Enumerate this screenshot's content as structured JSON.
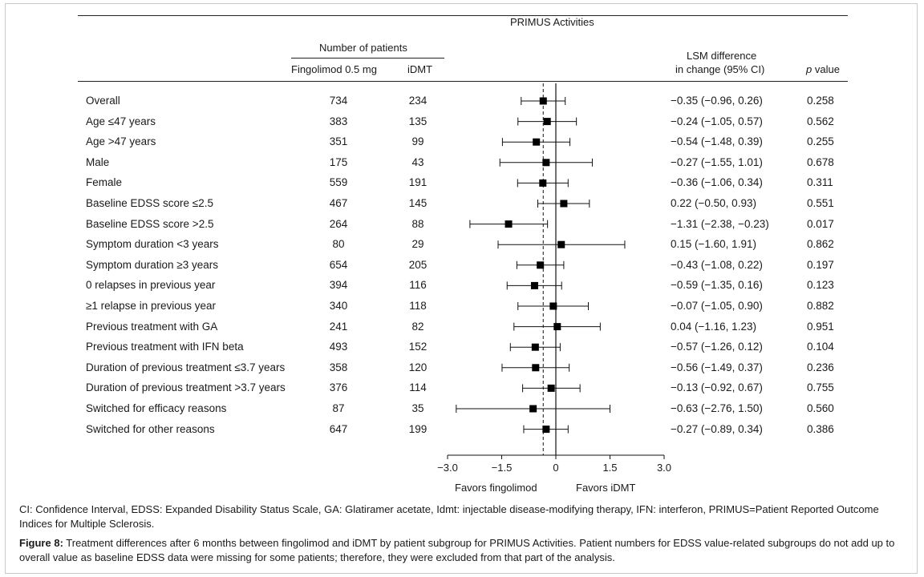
{
  "header": {
    "section_title": "PRIMUS Activities",
    "patients_header": "Number of patients",
    "col_fingolimod": "Fingolimod 0.5 mg",
    "col_idmt": "iDMT",
    "col_lsm_line1": "LSM difference",
    "col_lsm_line2": "in change (95% CI)",
    "col_p_italic": "p",
    "col_p_rest": " value"
  },
  "axis": {
    "ticks": [
      -3.0,
      -1.5,
      0,
      1.5,
      3.0
    ],
    "tick_labels": [
      "−3.0",
      "−1.5",
      "0",
      "1.5",
      "3.0"
    ],
    "xlim": [
      -3.0,
      3.0
    ],
    "favors_left": "Favors fingolimod",
    "favors_right": "Favors iDMT",
    "overall_reference": -0.35
  },
  "chart_data": {
    "type": "forest",
    "xlim": [
      -3.0,
      3.0
    ],
    "rows": [
      {
        "label": "Overall",
        "fingolimod": "734",
        "idmt": "234",
        "est": -0.35,
        "lo": -0.96,
        "hi": 0.26,
        "ci_text": "−0.35 (−0.96, 0.26)",
        "p": "0.258"
      },
      {
        "label": "Age ≤47 years",
        "fingolimod": "383",
        "idmt": "135",
        "est": -0.24,
        "lo": -1.05,
        "hi": 0.57,
        "ci_text": "−0.24 (−1.05, 0.57)",
        "p": "0.562"
      },
      {
        "label": "Age >47 years",
        "fingolimod": "351",
        "idmt": "99",
        "est": -0.54,
        "lo": -1.48,
        "hi": 0.39,
        "ci_text": "−0.54 (−1.48, 0.39)",
        "p": "0.255"
      },
      {
        "label": "Male",
        "fingolimod": "175",
        "idmt": "43",
        "est": -0.27,
        "lo": -1.55,
        "hi": 1.01,
        "ci_text": "−0.27 (−1.55, 1.01)",
        "p": "0.678"
      },
      {
        "label": "Female",
        "fingolimod": "559",
        "idmt": "191",
        "est": -0.36,
        "lo": -1.06,
        "hi": 0.34,
        "ci_text": "−0.36 (−1.06, 0.34)",
        "p": "0.311"
      },
      {
        "label": "Baseline EDSS score ≤2.5",
        "fingolimod": "467",
        "idmt": "145",
        "est": 0.22,
        "lo": -0.5,
        "hi": 0.93,
        "ci_text": "0.22 (−0.50, 0.93)",
        "p": "0.551"
      },
      {
        "label": "Baseline EDSS score >2.5",
        "fingolimod": "264",
        "idmt": "88",
        "est": -1.31,
        "lo": -2.38,
        "hi": -0.23,
        "ci_text": "−1.31 (−2.38, −0.23)",
        "p": "0.017"
      },
      {
        "label": "Symptom duration <3 years",
        "fingolimod": "80",
        "idmt": "29",
        "est": 0.15,
        "lo": -1.6,
        "hi": 1.91,
        "ci_text": "0.15 (−1.60, 1.91)",
        "p": "0.862"
      },
      {
        "label": "Symptom duration ≥3 years",
        "fingolimod": "654",
        "idmt": "205",
        "est": -0.43,
        "lo": -1.08,
        "hi": 0.22,
        "ci_text": "−0.43 (−1.08, 0.22)",
        "p": "0.197"
      },
      {
        "label": "0 relapses in previous year",
        "fingolimod": "394",
        "idmt": "116",
        "est": -0.59,
        "lo": -1.35,
        "hi": 0.16,
        "ci_text": "−0.59 (−1.35, 0.16)",
        "p": "0.123"
      },
      {
        "label": "≥1 relapse in previous year",
        "fingolimod": "340",
        "idmt": "118",
        "est": -0.07,
        "lo": -1.05,
        "hi": 0.9,
        "ci_text": "−0.07 (−1.05, 0.90)",
        "p": "0.882"
      },
      {
        "label": "Previous treatment with GA",
        "fingolimod": "241",
        "idmt": "82",
        "est": 0.04,
        "lo": -1.16,
        "hi": 1.23,
        "ci_text": "0.04 (−1.16, 1.23)",
        "p": "0.951"
      },
      {
        "label": "Previous treatment with IFN beta",
        "fingolimod": "493",
        "idmt": "152",
        "est": -0.57,
        "lo": -1.26,
        "hi": 0.12,
        "ci_text": "−0.57 (−1.26, 0.12)",
        "p": "0.104"
      },
      {
        "label": "Duration of previous treatment ≤3.7 years",
        "fingolimod": "358",
        "idmt": "120",
        "est": -0.56,
        "lo": -1.49,
        "hi": 0.37,
        "ci_text": "−0.56 (−1.49, 0.37)",
        "p": "0.236"
      },
      {
        "label": "Duration of previous treatment >3.7 years",
        "fingolimod": "376",
        "idmt": "114",
        "est": -0.13,
        "lo": -0.92,
        "hi": 0.67,
        "ci_text": "−0.13 (−0.92, 0.67)",
        "p": "0.755"
      },
      {
        "label": "Switched for efficacy reasons",
        "fingolimod": "87",
        "idmt": "35",
        "est": -0.63,
        "lo": -2.76,
        "hi": 1.5,
        "ci_text": "−0.63 (−2.76, 1.50)",
        "p": "0.560"
      },
      {
        "label": "Switched for other reasons",
        "fingolimod": "647",
        "idmt": "199",
        "est": -0.27,
        "lo": -0.89,
        "hi": 0.34,
        "ci_text": "−0.27 (−0.89, 0.34)",
        "p": "0.386"
      }
    ]
  },
  "footnote": "CI: Confidence Interval, EDSS: Expanded Disability Status Scale, GA: Glatiramer acetate, Idmt: injectable disease-modifying therapy, IFN: interferon, PRIMUS=Patient Reported Outcome Indices for Multiple Sclerosis.",
  "caption": {
    "label": "Figure 8:",
    "text": " Treatment differences after 6 months between fingolimod and iDMT by patient subgroup for PRIMUS Activities. Patient numbers for EDSS value-related subgroups do not add up to overall value as baseline EDSS data were missing for some patients; therefore, they were excluded from that part of the analysis."
  }
}
